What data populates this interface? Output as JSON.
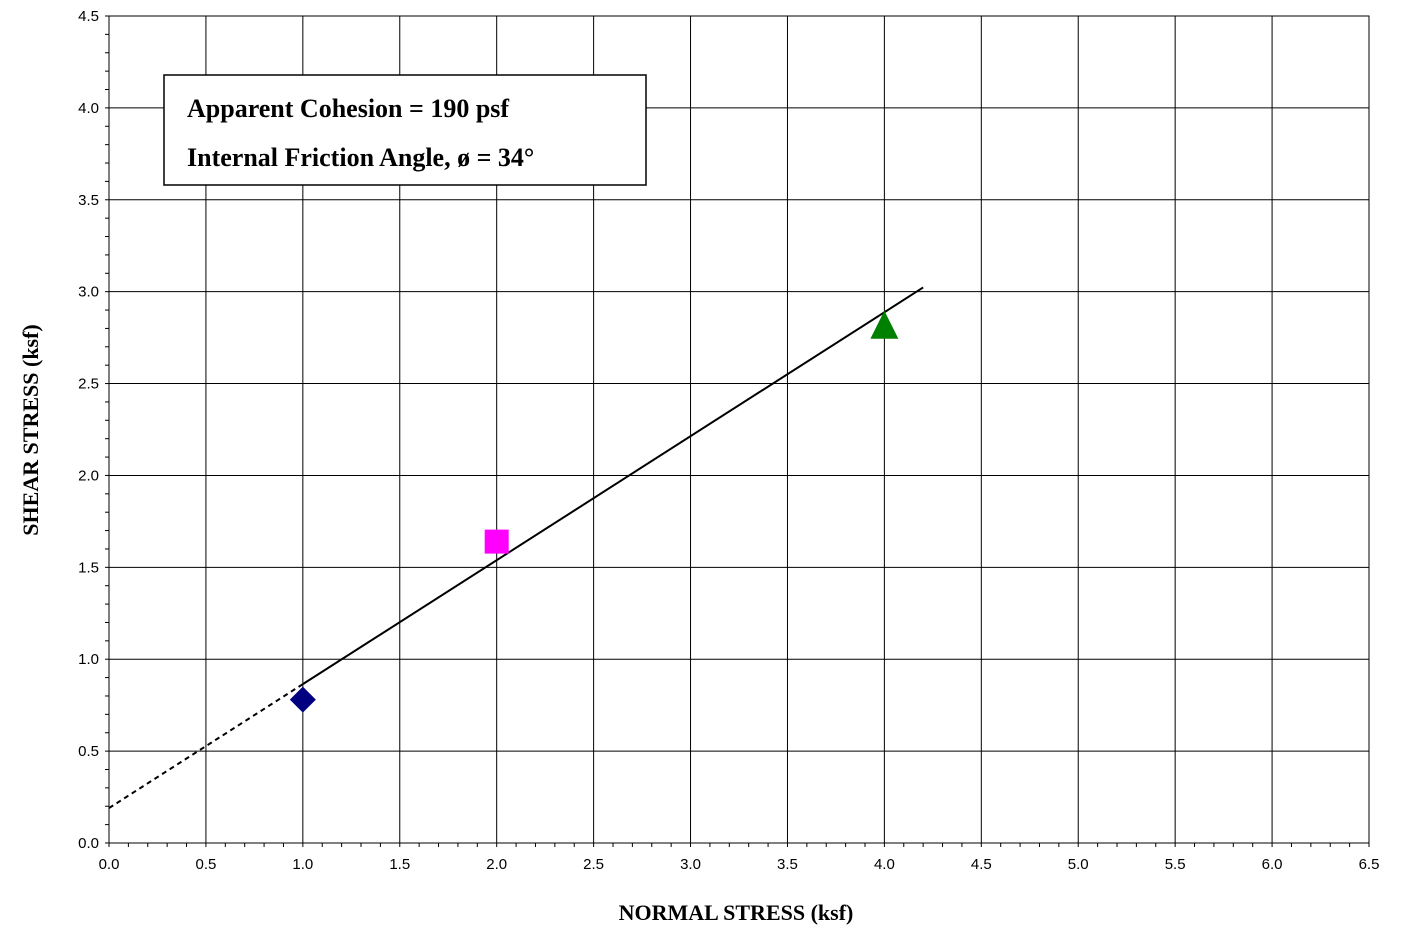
{
  "chart_data": {
    "type": "scatter",
    "title": "",
    "xlabel": "NORMAL STRESS (ksf)",
    "ylabel": "SHEAR STRESS (ksf)",
    "xlim": [
      0,
      6.5
    ],
    "ylim": [
      0,
      4.5
    ],
    "x_ticks": [
      "0.0",
      "0.5",
      "1.0",
      "1.5",
      "2.0",
      "2.5",
      "3.0",
      "3.5",
      "4.0",
      "4.5",
      "5.0",
      "5.5",
      "6.0",
      "6.5"
    ],
    "y_ticks": [
      "0.0",
      "0.5",
      "1.0",
      "1.5",
      "2.0",
      "2.5",
      "3.0",
      "3.5",
      "4.0",
      "4.5"
    ],
    "grid": true,
    "series": [
      {
        "marker": "diamond",
        "color": "#000080",
        "points": [
          {
            "x": 1.0,
            "y": 0.78
          }
        ]
      },
      {
        "marker": "square",
        "color": "#ff00ff",
        "points": [
          {
            "x": 2.0,
            "y": 1.64
          }
        ]
      },
      {
        "marker": "triangle",
        "color": "#008000",
        "points": [
          {
            "x": 4.0,
            "y": 2.82
          }
        ]
      }
    ],
    "fit_line": {
      "intercept": 0.19,
      "slope": 0.6745,
      "dashed_range": [
        0,
        1.0
      ],
      "solid_range": [
        1.0,
        4.2
      ],
      "color": "#000000"
    },
    "annotation": {
      "lines": [
        "Apparent Cohesion = 190 psf",
        "Internal Friction Angle, ø = 34°"
      ]
    }
  }
}
